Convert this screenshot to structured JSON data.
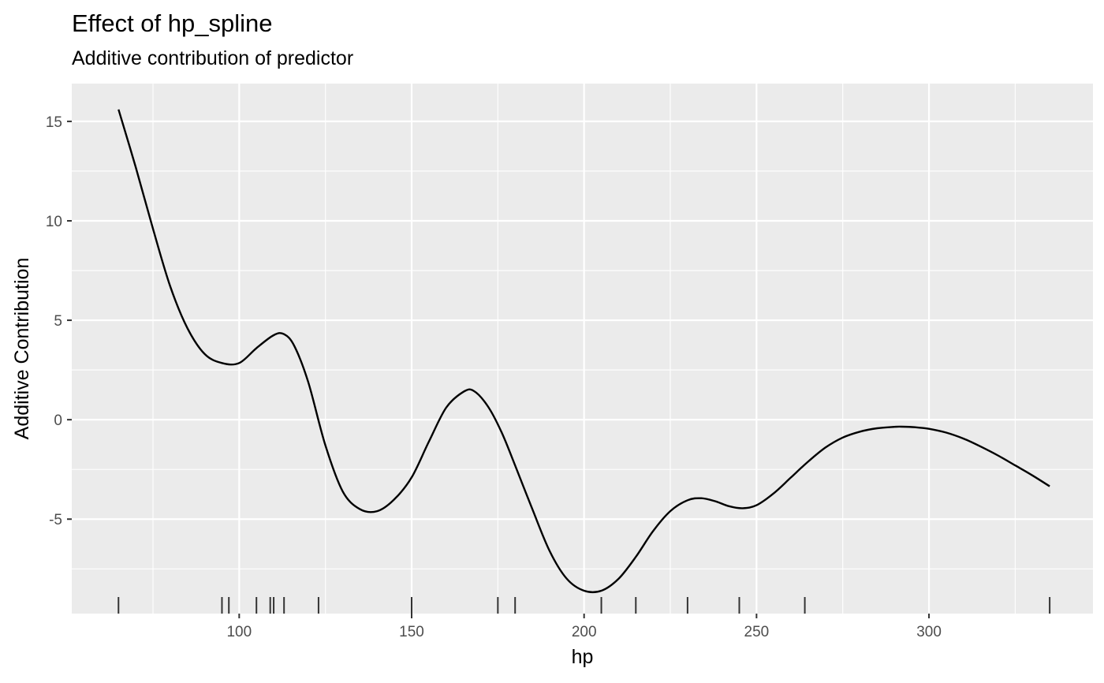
{
  "chart_data": {
    "type": "line",
    "title": "Effect of hp_spline",
    "subtitle": "Additive contribution of predictor",
    "xlabel": "hp",
    "ylabel": "Additive Contribution",
    "xlim": [
      51.45,
      347.55
    ],
    "ylim": [
      -9.75,
      16.9
    ],
    "x_ticks": [
      100,
      150,
      200,
      250,
      300
    ],
    "x_tick_labels": [
      "100",
      "150",
      "200",
      "250",
      "300"
    ],
    "x_minor_ticks": [
      75,
      125,
      175,
      225,
      275,
      325
    ],
    "y_ticks": [
      -5,
      0,
      5,
      10,
      15
    ],
    "y_tick_labels": [
      "-5",
      "0",
      "5",
      "10",
      "15"
    ],
    "y_minor_ticks": [
      -7.5,
      -2.5,
      2.5,
      7.5,
      12.5
    ],
    "grid": true,
    "panel_background": "#EBEBEB",
    "grid_color": "#FFFFFF",
    "line_color": "#000000",
    "rug_color": "#333333",
    "series": [
      {
        "x": [
          65,
          70,
          75,
          80,
          85,
          90,
          95,
          100,
          105,
          110,
          113,
          116,
          120,
          125,
          130,
          135,
          140,
          145,
          150,
          155,
          160,
          165,
          168,
          172,
          176,
          180,
          185,
          190,
          195,
          200,
          205,
          210,
          215,
          220,
          225,
          230,
          234,
          238,
          242,
          246,
          250,
          255,
          260,
          265,
          270,
          275,
          280,
          285,
          290,
          292,
          296,
          300,
          305,
          310,
          315,
          320,
          325,
          330,
          335
        ],
        "y": [
          15.6,
          12.7,
          9.6,
          6.7,
          4.6,
          3.3,
          2.85,
          2.85,
          3.6,
          4.25,
          4.3,
          3.7,
          1.9,
          -1.3,
          -3.6,
          -4.5,
          -4.6,
          -4.0,
          -2.9,
          -1.1,
          0.6,
          1.4,
          1.45,
          0.7,
          -0.6,
          -2.3,
          -4.5,
          -6.6,
          -8.0,
          -8.6,
          -8.6,
          -8.0,
          -6.9,
          -5.6,
          -4.6,
          -4.05,
          -3.95,
          -4.1,
          -4.35,
          -4.45,
          -4.3,
          -3.7,
          -2.9,
          -2.1,
          -1.4,
          -0.9,
          -0.6,
          -0.43,
          -0.36,
          -0.35,
          -0.38,
          -0.46,
          -0.65,
          -0.95,
          -1.35,
          -1.8,
          -2.3,
          -2.8,
          -3.35
        ]
      }
    ],
    "rug_x": [
      65,
      95,
      97,
      105,
      109,
      110,
      113,
      123,
      150,
      175,
      180,
      205,
      215,
      230,
      245,
      264,
      335
    ]
  }
}
